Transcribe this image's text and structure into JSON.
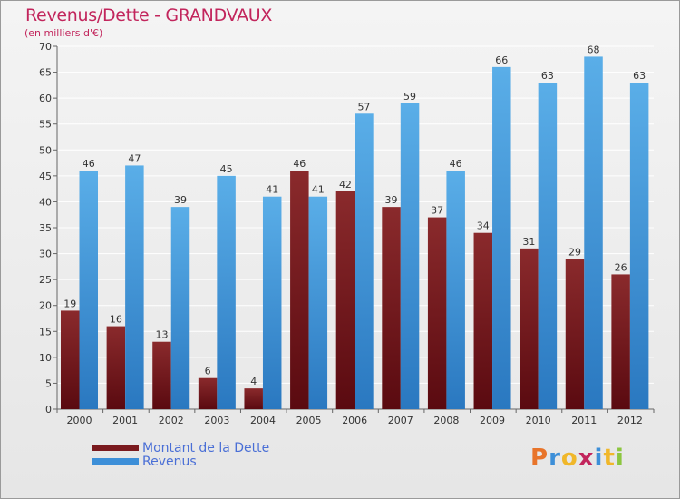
{
  "chart_data": {
    "type": "bar",
    "title": "Revenus/Dette - GRANDVAUX",
    "subtitle": "(en milliers d'€)",
    "categories": [
      "2000",
      "2001",
      "2002",
      "2003",
      "2004",
      "2005",
      "2006",
      "2007",
      "2008",
      "2009",
      "2010",
      "2011",
      "2012"
    ],
    "series": [
      {
        "name": "Montant de la Dette",
        "color": "#7a1a1e",
        "values": [
          19,
          16,
          13,
          6,
          4,
          46,
          42,
          39,
          37,
          34,
          31,
          29,
          26
        ]
      },
      {
        "name": "Revenus",
        "color": "#3d8fd8",
        "values": [
          46,
          47,
          39,
          45,
          41,
          41,
          57,
          59,
          46,
          66,
          63,
          68,
          63
        ]
      }
    ],
    "ylim": [
      0,
      70
    ],
    "yticks": [
      0,
      5,
      10,
      15,
      20,
      25,
      30,
      35,
      40,
      45,
      50,
      55,
      60,
      65,
      70
    ],
    "grid": true,
    "legend": "bottom-left"
  },
  "logo": {
    "text": "Proxiti",
    "letters": [
      "P",
      "r",
      "o",
      "x",
      "i",
      "t",
      "i"
    ]
  }
}
